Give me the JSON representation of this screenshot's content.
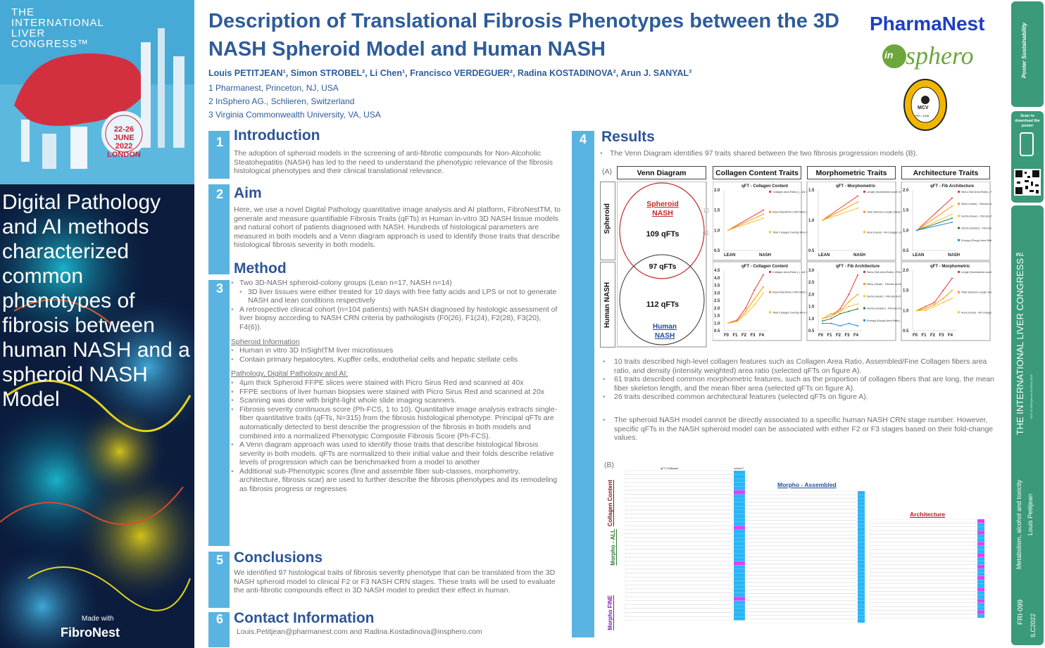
{
  "congress": {
    "line1": "THE",
    "line2": "INTERNATIONAL",
    "line3": "LIVER",
    "line4": "CONGRESS™",
    "dates1": "22-26",
    "dates2": "JUNE",
    "dates3": "2022",
    "dates4": "LONDON"
  },
  "sidebar": {
    "tagline": "Digital Pathology and AI methods characterized common phenotypes of fibrosis between human NASH and a spheroid NASH Model",
    "made_with": "Made with",
    "brand": "FibroNest"
  },
  "header": {
    "title": "Description of Translational Fibrosis Phenotypes between the 3D NASH Spheroid Model and Human NASH",
    "authors": "Louis PETITJEAN¹, Simon STROBEL², Li Chen¹, Francisco VERDEGUER², Radina KOSTADINOVA², Arun J. SANYAL³",
    "aff1": "1 Pharmanest, Princeton, NJ, USA",
    "aff2": "2 InSphero AG., Schlieren, Switzerland",
    "aff3": "3 Virginia Commonwealth University, VA, USA",
    "logo1": "PharmaNest",
    "logo2_a": "in",
    "logo2_b": "sphero",
    "logo3_top": "VIRGINIA COMMONWEALTH UNIVERSITY",
    "logo3_mid": "MCV",
    "logo3_bot": "RPI • 1838"
  },
  "sections": {
    "s1": {
      "num": "1",
      "title": "Introduction",
      "text": "The adoption of spheroid models in the screening of anti-fibrotic compounds for Non-Alcoholic Steatohepatitis (NASH) has led to the need to understand the phenotypic relevance of the fibrosis histological phenotypes and their clinical translational relevance."
    },
    "s2": {
      "num": "2",
      "title": "Aim",
      "text": "Here, we use a novel Digital Pathology quantitative image analysis and AI platform, FibroNestTM, to generate and measure quantifiable Fibrosis Traits (qFTs) in Human in-vitro 3D NASH tissue models and natural cohort of patients diagnosed with NASH. Hundreds of histological parameters are measured in both models and a Venn diagram approach is used to identify those traits that describe histological fibrosis severity in both models."
    },
    "s3": {
      "num": "3",
      "title": "Method",
      "b1": "Two 3D-NASH spheroid-colony groups (Lean n=17, NASH n=14)",
      "b1a": "3D liver tissues were either treated for 10 days with free fatty acids and LPS or not to generate NASH and lean conditions respectively",
      "b2": "A retrospective clinical cohort (n=104 patients) with NASH diagnosed by histologic assessment of liver biopsy according to NASH CRN criteria by pathologists (F0(26), F1(24), F2(28), F3(20), F4(6)).",
      "h1": "Spheroid Information",
      "c1": "Human in vitro 3D InSightTM liver microtissues",
      "c2": "Contain primary hepatocytes, Kupffer cells, endothelial cells and hepatic stellate cells",
      "h2": "Pathology, Digital Pathology and AI:",
      "d1": "4µm thick Spheroid FFPE slices were stained with Picro Sirus Red and scanned at 40x",
      "d2": "FFPE sections of liver human biopsies were stained with Picro Sirus Red and scanned at 20x",
      "d3": "Scanning was done with bright-light whole slide imaging scanners.",
      "d4": "Fibrosis severity continuous score (Ph-FCS, 1 to 10). Quantitative image analysis extracts single-fiber quantitative traits (qFTs, N=315) from the fibrosis histological phenotype. Principal qFTs are automatically detected to best describe the progression of the fibrosis in both models and combined into a normalized Phenotypic Composite Fibrosis Score (Ph-FCS).",
      "d5": "A Venn diagram approach was used to identify those traits that describe histological fibrosis severity in both models. qFTs are normalized to their initial value and their folds describe relative levels of progression which can be benchmarked from a model to another",
      "d6": "Additional sub-Phenotypic scores (fine and assemble fiber sub-classes, morphometry, architecture, fibrosis scar) are used to further describe the fibrosis phenotypes and its remodeling as fibrosis progress or regresses"
    },
    "s5": {
      "num": "5",
      "title": "Conclusions",
      "text": "We identified 97 histological traits of fibrosis severity phenotype that can be translated from the 3D NASH spheroid model to clinical F2 or F3 NASH CRN stages. These traits will be used to evaluate the anti-fibrotic compounds effect in 3D NASH model to predict their effect in human."
    },
    "s6": {
      "num": "6",
      "title": "Contact Information",
      "text": "Louis.Petitjean@pharmanest.com and Radina.Kostadinova@insphero.com"
    },
    "s4": {
      "num": "4",
      "title": "Results",
      "intro": "The Venn Diagram identifies 97 traits shared between the two fibrosis progression models (B).",
      "r1": "10 traits described high-level collagen features such as Collagen Area Ratio, Assembled/Fine Collagen fibers area ratio, and density (intensity weighted) area ratio (selected qFTs on figure A).",
      "r2": "61 traits described common morphometric features, such as the proportion of collagen fibers that are long, the mean fiber skeleton length, and the mean fiber area (selected qFTs on figure A).",
      "r3": "26 traits described common architectural features (selected qFTs on figure A).",
      "r4": "The spheroid NASH model cannot be directly associated to a specific human NASH CRN stage number. However, specific qFTs in the NASH spheroid model can be associated with either F2 or F3 stages based on their fold-change values."
    }
  },
  "figureA": {
    "label": "(A)",
    "h1": "Venn Diagram",
    "h2": "Collagen Content Traits",
    "h3": "Morphometric Traits",
    "h4": "Architecture Traits",
    "row1": "Spheroid",
    "row2": "Human NASH",
    "venn_top_label": "Spheroid NASH",
    "venn_top_count": "109 qFTs",
    "venn_mid": "97 qFTs",
    "venn_bot_count": "112 qFTs",
    "venn_bot_label": "Human NASH",
    "side1": "10",
    "side2": "61",
    "t1": "qFT - Collagen Content",
    "t2": "qFT - Morphometric",
    "t3": "qFT - Fib Architecture",
    "t4": "qFT - Collagen Content",
    "t5": "qFT - Fib Architecture",
    "t6": "qFT - Morphometric",
    "lean": "LEAN",
    "nash": "NASH"
  },
  "figureB": {
    "label": "(B)",
    "g1": "Collagen Content",
    "g2": "Morpho - ALL",
    "g3": "Morpho FINE",
    "h_mid": "Morpho - Assembled",
    "h_right": "Architecture",
    "col_name": "qFT FullName",
    "col_coded": "coded F"
  },
  "rightbar": {
    "brand": "Poster Sustainability",
    "scan": "Scan to download the poster",
    "congress": "THE INTERNATIONAL LIVER CONGRESS™",
    "topic": "Metabolism, alcohol and toxicity",
    "author": "Louis Petitjean",
    "code": "FRI-099",
    "ilc": "ILC2022",
    "doi": "DOI: 10.3252/pso.eu.ILC2022.2022"
  },
  "chart_data": [
    {
      "type": "line",
      "title": "qFT - Collagen Content",
      "categories": [
        "LEAN",
        "NASH"
      ],
      "ylim": [
        0.5,
        2.0
      ],
      "series": [
        {
          "name": "Collagen Area Ratio (-) - All Tissue Collagen Content",
          "values": [
            1.0,
            1.5
          ]
        },
        {
          "name": "Assembled/Fine CAR Ratio (-) - Assembled Tissue Collagen Content",
          "values": [
            1.0,
            1.4
          ]
        },
        {
          "name": "Total Collagen Density Area Ratio (-) - All Tissue Collagen Content",
          "values": [
            1.0,
            1.3
          ]
        }
      ]
    },
    {
      "type": "line",
      "title": "qFT - Morphometric",
      "categories": [
        "LEAN",
        "NASH"
      ],
      "ylim": [
        0.5,
        1.5
      ],
      "series": [
        {
          "name": "Length (Normalized count of Long) - All Collagen phenotypes",
          "values": [
            1.0,
            1.4
          ]
        },
        {
          "name": "Total Skeleton Length (mean) - All Collagen phenotypes",
          "values": [
            1.0,
            1.3
          ]
        },
        {
          "name": "Area (mean) - All Collagen phenotypes",
          "values": [
            1.0,
            1.2
          ]
        }
      ]
    },
    {
      "type": "line",
      "title": "qFT - Fib Architecture",
      "categories": [
        "LEAN",
        "NASH"
      ],
      "ylim": [
        0.5,
        2.0
      ],
      "series": [
        {
          "name": "Skew (Soll Area Ratio) - Fibrosis Architecture",
          "values": [
            1.0,
            1.8
          ]
        },
        {
          "name": "Skew (mean) - Fibrosis Architecture",
          "values": [
            1.0,
            1.6
          ]
        },
        {
          "name": "Inertia (mean) - Fibrosis Architecture",
          "values": [
            1.0,
            1.4
          ]
        },
        {
          "name": "Inertia (median) - Fibrosis Architecture",
          "values": [
            1.0,
            1.3
          ]
        },
        {
          "name": "Entropy (Rough Area Ratio) - Fibrosis Architecture",
          "values": [
            1.0,
            1.2
          ]
        }
      ]
    },
    {
      "type": "line",
      "title": "qFT - Collagen Content",
      "categories": [
        "F0",
        "F1",
        "F2",
        "F3",
        "F4"
      ],
      "ylim": [
        0.5,
        4.5
      ],
      "series": [
        {
          "name": "Collagen Area Ratio (-) - All Tissue Collagen Content",
          "values": [
            1.0,
            1.2,
            2.0,
            3.2,
            4.2
          ]
        },
        {
          "name": "Assembled/Fine CAR Ratio (-) - Assembled Tissue Collagen Content",
          "values": [
            1.0,
            1.1,
            1.8,
            2.6,
            3.4
          ]
        },
        {
          "name": "Total Collagen Density Area Ratio (-) - All Tissue Collagen Content",
          "values": [
            1.0,
            1.1,
            1.6,
            2.2,
            3.0
          ]
        }
      ]
    },
    {
      "type": "line",
      "title": "qFT - Fib Architecture",
      "categories": [
        "F0",
        "F1",
        "F2",
        "F3",
        "F4"
      ],
      "ylim": [
        0.5,
        3.0
      ],
      "series": [
        {
          "name": "Skew (Soll Area Ratio) - Fibrosis Architecture",
          "values": [
            1.0,
            1.1,
            1.4,
            2.0,
            2.8
          ]
        },
        {
          "name": "Skew (mean) - Fibrosis Architecture",
          "values": [
            1.0,
            1.2,
            1.3,
            1.7,
            2.0
          ]
        },
        {
          "name": "Inertia (mean) - Fibrosis Architecture",
          "values": [
            1.0,
            1.1,
            1.3,
            1.5,
            1.6
          ]
        },
        {
          "name": "Inertia (median) - Fibrosis Architecture",
          "values": [
            0.9,
            1.0,
            1.2,
            1.3,
            1.4
          ]
        },
        {
          "name": "Entropy (Rough Area Ratio) - Fibrosis Architecture",
          "values": [
            0.8,
            0.8,
            0.7,
            0.8,
            0.7
          ]
        }
      ]
    },
    {
      "type": "line",
      "title": "qFT - Morphometric",
      "categories": [
        "F0",
        "F1",
        "F2",
        "F3",
        "F4"
      ],
      "ylim": [
        0.5,
        2.0
      ],
      "series": [
        {
          "name": "Length (Normalized count of Long) - All Collagen phenotypes",
          "values": [
            1.0,
            1.1,
            1.2,
            1.5,
            1.8
          ]
        },
        {
          "name": "Total Skeleton Length (mean) - All Collagen phenotypes",
          "values": [
            1.0,
            1.05,
            1.15,
            1.3,
            1.5
          ]
        },
        {
          "name": "Area (mean) - All Collagen phenotypes",
          "values": [
            1.0,
            1.0,
            1.1,
            1.2,
            1.3
          ]
        }
      ]
    }
  ]
}
